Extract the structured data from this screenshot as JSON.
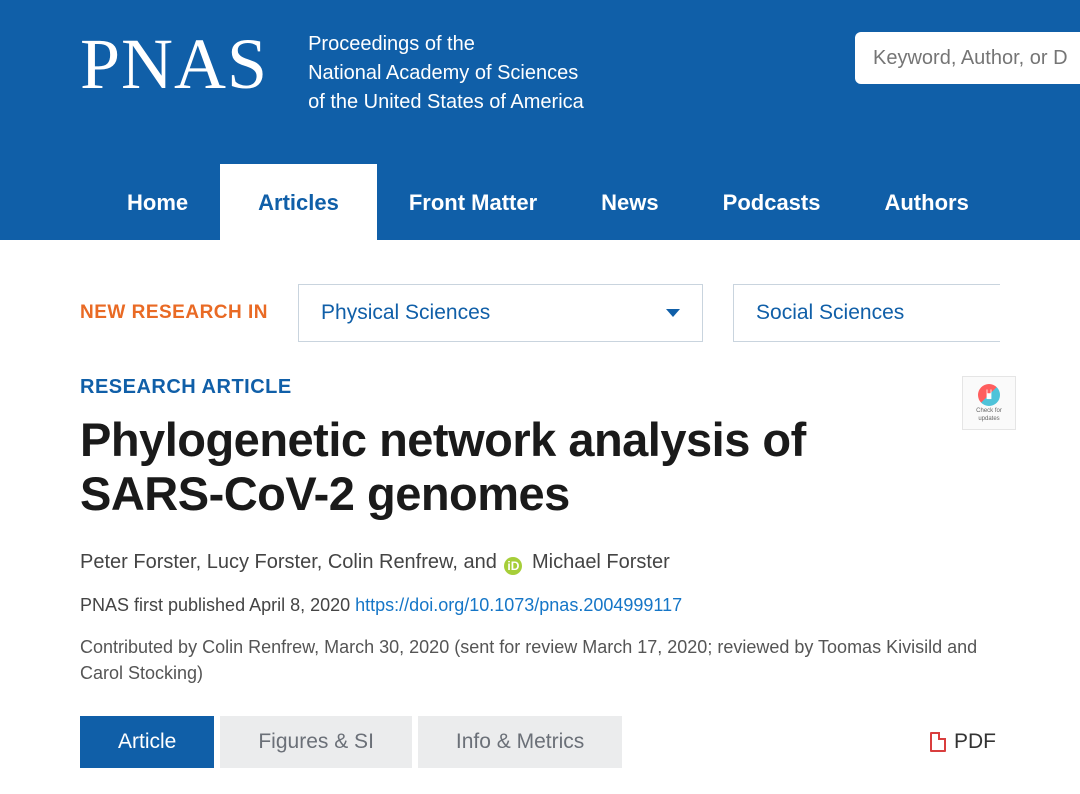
{
  "header": {
    "logo": "PNAS",
    "subtitle_l1": "Proceedings of the",
    "subtitle_l2": "National Academy of Sciences",
    "subtitle_l3": "of the United States of America",
    "search_placeholder": "Keyword, Author, or D"
  },
  "nav": {
    "items": [
      "Home",
      "Articles",
      "Front Matter",
      "News",
      "Podcasts",
      "Authors"
    ],
    "active_index": 1
  },
  "research_row": {
    "label": "NEW RESEARCH IN",
    "dropdown1": "Physical Sciences",
    "dropdown2": "Social Sciences"
  },
  "article": {
    "type": "RESEARCH ARTICLE",
    "title": "Phylogenetic network analysis of SARS-CoV-2 genomes",
    "authors_pre": "Peter Forster, Lucy Forster, Colin Renfrew, and ",
    "orcid_glyph": "iD",
    "authors_post": " Michael Forster",
    "pub_prefix": "PNAS first published April 8, 2020 ",
    "doi": "https://doi.org/10.1073/pnas.2004999117",
    "contributed": "Contributed by Colin Renfrew, March 30, 2020 (sent for review March 17, 2020; reviewed by Toomas Kivisild and Carol Stocking)",
    "check_updates_l1": "Check for",
    "check_updates_l2": "updates"
  },
  "tabs": {
    "items": [
      "Article",
      "Figures & SI",
      "Info & Metrics"
    ],
    "active_index": 0,
    "pdf_label": "PDF"
  },
  "colors": {
    "brand": "#105fa8",
    "accent_orange": "#e96a24",
    "link": "#1576c7",
    "orcid": "#a6ce39",
    "pdf_red": "#d93e3e",
    "tab_inactive_bg": "#ebeced"
  }
}
